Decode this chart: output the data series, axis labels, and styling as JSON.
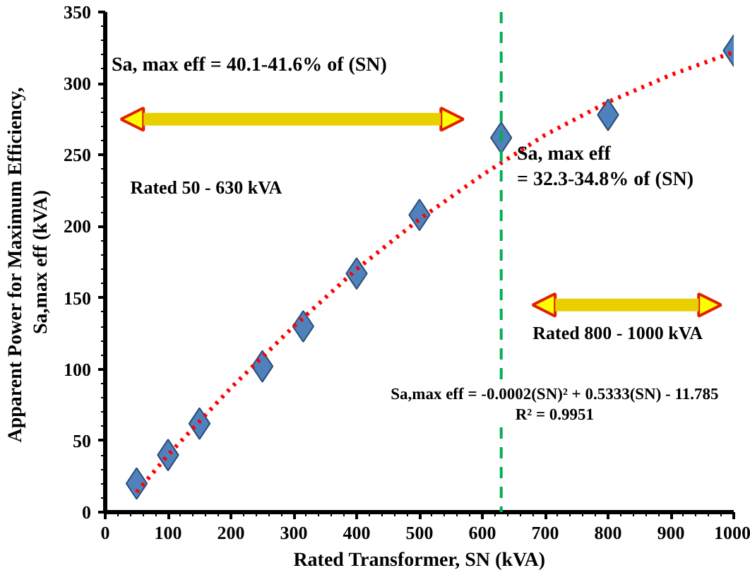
{
  "chart_data": {
    "type": "scatter",
    "xlabel": "Rated Transformer, SN (kVA)",
    "ylabel": "Apparent  Power for Maximum Efficiency,\nSa,max eff (kVA)",
    "x": [
      50,
      100,
      150,
      250,
      315,
      400,
      500,
      630,
      800,
      1000
    ],
    "series": [
      {
        "color": "#4f81bd",
        "marker": "diamond",
        "values": [
          20,
          40,
          62,
          102,
          130,
          167,
          208,
          262,
          278,
          323
        ]
      },
      {
        "type": "line",
        "color": "#ff0000",
        "line_style": "dotted",
        "x": [
          50,
          100,
          200,
          300,
          400,
          500,
          600,
          700,
          800,
          900,
          1000
        ],
        "values": [
          14,
          40,
          87,
          130,
          170,
          205,
          236,
          264,
          287,
          306,
          322
        ]
      }
    ],
    "xlim": [
      0,
      1000
    ],
    "xticks": [
      0,
      100,
      200,
      300,
      400,
      500,
      600,
      700,
      800,
      900,
      1000
    ],
    "ylim": [
      0,
      350
    ],
    "yticks": [
      0,
      50,
      100,
      150,
      200,
      250,
      300,
      350
    ],
    "grid": false,
    "ref_lines": [
      {
        "axis": "x",
        "value": 630,
        "color": "#00b050",
        "line_style": "dashed"
      }
    ],
    "annotations": [
      "Sa, max eff  = 40.1-41.6% of (SN)",
      "Rated  50 - 630 kVA",
      "Sa, max eff\n= 32.3-34.8% of (SN)",
      "Rated  800 - 1000 kVA",
      "Sa,max eff = -0.0002(SN)² + 0.5333(SN) - 11.785\nR² = 0.9951"
    ]
  }
}
